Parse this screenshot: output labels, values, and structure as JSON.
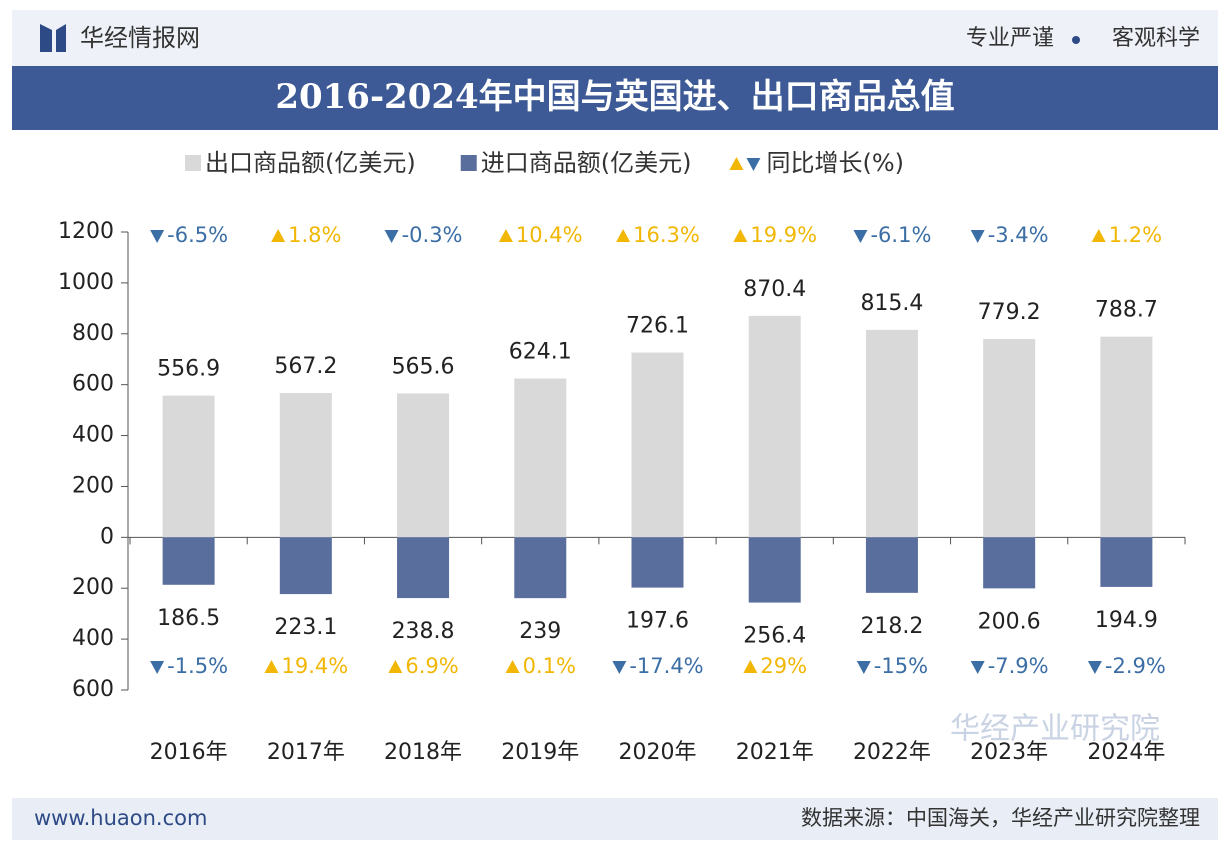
{
  "header": {
    "brand": "华经情报网",
    "slogan_left": "专业严谨",
    "slogan_right": "客观科学"
  },
  "chart_data": {
    "type": "bar",
    "title": "2016-2024年中国与英国进、出口商品总值",
    "categories": [
      "2016年",
      "2017年",
      "2018年",
      "2019年",
      "2020年",
      "2021年",
      "2022年",
      "2023年",
      "2024年"
    ],
    "series": [
      {
        "name": "出口商品额(亿美元)",
        "color": "#d9d9d9",
        "values": [
          556.9,
          567.2,
          565.6,
          624.1,
          726.1,
          870.4,
          815.4,
          779.2,
          788.7
        ],
        "growth": [
          -6.5,
          1.8,
          -0.3,
          10.4,
          16.3,
          19.9,
          -6.1,
          -3.4,
          1.2
        ],
        "growth_labels": [
          "-6.5%",
          "1.8%",
          "-0.3%",
          "10.4%",
          "16.3%",
          "19.9%",
          "-6.1%",
          "-3.4%",
          "1.2%"
        ]
      },
      {
        "name": "进口商品额(亿美元)",
        "color": "#5a6e9e",
        "values": [
          -186.5,
          -223.1,
          -238.8,
          -239,
          -197.6,
          -256.4,
          -218.2,
          -200.6,
          -194.9
        ],
        "value_labels": [
          "186.5",
          "223.1",
          "238.8",
          "239",
          "197.6",
          "256.4",
          "218.2",
          "200.6",
          "194.9"
        ],
        "growth": [
          -1.5,
          19.4,
          6.9,
          0.1,
          -17.4,
          29,
          -15,
          -7.9,
          -2.9
        ],
        "growth_labels": [
          "-1.5%",
          "19.4%",
          "6.9%",
          "0.1%",
          "-17.4%",
          "29%",
          "-15%",
          "-7.9%",
          "-2.9%"
        ]
      }
    ],
    "growth_legend": "同比增长(%)",
    "up_color": "#f2b705",
    "down_color": "#3b6ea5",
    "ylim": [
      -600,
      1200
    ],
    "yticks": [
      {
        "value": -600,
        "label": "600"
      },
      {
        "value": -400,
        "label": "400"
      },
      {
        "value": -200,
        "label": "200"
      },
      0,
      200,
      400,
      600,
      800,
      1000,
      1200
    ]
  },
  "footer": {
    "url": "www.huaon.com",
    "source": "数据来源：中国海关，华经产业研究院整理"
  },
  "watermark": "华经产业研究院"
}
